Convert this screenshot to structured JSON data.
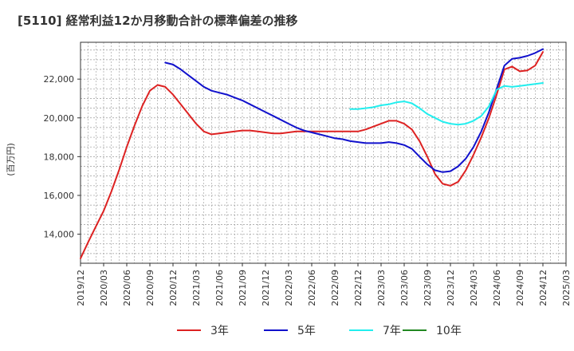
{
  "chart_data": {
    "type": "line",
    "title": "[5110]  経常利益12か月移動合計の標準偏差の推移",
    "ylabel": "(百万円)",
    "xlabel": "",
    "ylim": [
      12500,
      23900
    ],
    "yticks": [
      14000,
      16000,
      18000,
      20000,
      22000
    ],
    "ytick_labels": [
      "14,000",
      "16,000",
      "18,000",
      "20,000",
      "22,000"
    ],
    "x_range": [
      "2019-12",
      "2025-03"
    ],
    "xtick_labels": [
      "2019/12",
      "2020/03",
      "2020/06",
      "2020/09",
      "2020/12",
      "2021/03",
      "2021/06",
      "2021/09",
      "2021/12",
      "2022/03",
      "2022/06",
      "2022/09",
      "2022/12",
      "2023/03",
      "2023/06",
      "2023/09",
      "2023/12",
      "2024/03",
      "2024/06",
      "2024/09",
      "2024/12",
      "2025/03"
    ],
    "grid": true,
    "legend_position": "bottom",
    "series": [
      {
        "name": "3年",
        "color": "#dd2222",
        "x": [
          "2019-12",
          "2020-01",
          "2020-02",
          "2020-03",
          "2020-04",
          "2020-05",
          "2020-06",
          "2020-07",
          "2020-08",
          "2020-09",
          "2020-10",
          "2020-11",
          "2020-12",
          "2021-01",
          "2021-02",
          "2021-03",
          "2021-04",
          "2021-05",
          "2021-06",
          "2021-07",
          "2021-08",
          "2021-09",
          "2021-10",
          "2021-11",
          "2021-12",
          "2022-01",
          "2022-02",
          "2022-03",
          "2022-04",
          "2022-05",
          "2022-06",
          "2022-07",
          "2022-08",
          "2022-09",
          "2022-10",
          "2022-11",
          "2022-12",
          "2023-01",
          "2023-02",
          "2023-03",
          "2023-04",
          "2023-05",
          "2023-06",
          "2023-07",
          "2023-08",
          "2023-09",
          "2023-10",
          "2023-11",
          "2023-12",
          "2024-01",
          "2024-02",
          "2024-03",
          "2024-04",
          "2024-05",
          "2024-06",
          "2024-07",
          "2024-08",
          "2024-09",
          "2024-10",
          "2024-11",
          "2024-12"
        ],
        "values": [
          12750,
          13600,
          14400,
          15200,
          16200,
          17300,
          18500,
          19600,
          20600,
          21400,
          21700,
          21600,
          21200,
          20700,
          20200,
          19700,
          19300,
          19150,
          19200,
          19250,
          19300,
          19350,
          19350,
          19300,
          19250,
          19200,
          19200,
          19250,
          19300,
          19300,
          19300,
          19300,
          19300,
          19300,
          19300,
          19300,
          19300,
          19400,
          19550,
          19700,
          19850,
          19850,
          19700,
          19400,
          18800,
          18000,
          17100,
          16600,
          16500,
          16700,
          17300,
          18100,
          19000,
          20000,
          21200,
          22500,
          22650,
          22400,
          22450,
          22700,
          23400
        ]
      },
      {
        "name": "5年",
        "color": "#1111cc",
        "x": [
          "2020-11",
          "2020-12",
          "2021-01",
          "2021-02",
          "2021-03",
          "2021-04",
          "2021-05",
          "2021-06",
          "2021-07",
          "2021-08",
          "2021-09",
          "2021-10",
          "2021-11",
          "2021-12",
          "2022-01",
          "2022-02",
          "2022-03",
          "2022-04",
          "2022-05",
          "2022-06",
          "2022-07",
          "2022-08",
          "2022-09",
          "2022-10",
          "2022-11",
          "2022-12",
          "2023-01",
          "2023-02",
          "2023-03",
          "2023-04",
          "2023-05",
          "2023-06",
          "2023-07",
          "2023-08",
          "2023-09",
          "2023-10",
          "2023-11",
          "2023-12",
          "2024-01",
          "2024-02",
          "2024-03",
          "2024-04",
          "2024-05",
          "2024-06",
          "2024-07",
          "2024-08",
          "2024-09",
          "2024-10",
          "2024-11",
          "2024-12"
        ],
        "values": [
          22850,
          22750,
          22500,
          22200,
          21900,
          21600,
          21400,
          21300,
          21200,
          21050,
          20900,
          20700,
          20500,
          20300,
          20100,
          19900,
          19700,
          19500,
          19350,
          19250,
          19150,
          19050,
          18950,
          18900,
          18800,
          18750,
          18700,
          18700,
          18700,
          18750,
          18700,
          18600,
          18400,
          18000,
          17600,
          17300,
          17200,
          17250,
          17500,
          17900,
          18500,
          19300,
          20300,
          21500,
          22700,
          23050,
          23100,
          23200,
          23350,
          23550
        ]
      },
      {
        "name": "7年",
        "color": "#22eeee",
        "x": [
          "2022-11",
          "2022-12",
          "2023-01",
          "2023-02",
          "2023-03",
          "2023-04",
          "2023-05",
          "2023-06",
          "2023-07",
          "2023-08",
          "2023-09",
          "2023-10",
          "2023-11",
          "2023-12",
          "2024-01",
          "2024-02",
          "2024-03",
          "2024-04",
          "2024-05",
          "2024-06",
          "2024-07",
          "2024-08",
          "2024-09",
          "2024-10",
          "2024-11",
          "2024-12"
        ],
        "values": [
          20450,
          20450,
          20500,
          20550,
          20650,
          20700,
          20800,
          20850,
          20750,
          20500,
          20200,
          20000,
          19800,
          19700,
          19650,
          19700,
          19850,
          20100,
          20600,
          21450,
          21650,
          21600,
          21650,
          21700,
          21750,
          21800
        ]
      },
      {
        "name": "10年",
        "color": "#228822",
        "x": [],
        "values": []
      }
    ]
  }
}
